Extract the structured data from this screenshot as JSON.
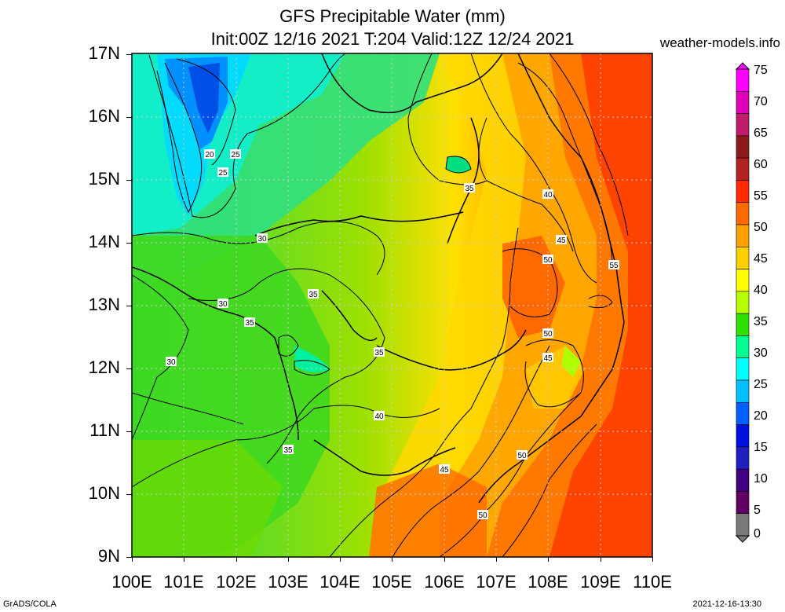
{
  "header": {
    "title_line1": "GFS Precipitable Water (mm)",
    "title_line2": "Init:00Z 12/16 2021 T:204 Valid:12Z 12/24 2021",
    "site": "weather-models.info"
  },
  "footer": {
    "left": "GrADS/COLA",
    "right": "2021-12-16-13:30"
  },
  "axes": {
    "lat_labels": [
      "17N",
      "16N",
      "15N",
      "14N",
      "13N",
      "12N",
      "11N",
      "10N",
      "9N"
    ],
    "lon_labels": [
      "100E",
      "101E",
      "102E",
      "103E",
      "104E",
      "105E",
      "106E",
      "107E",
      "108E",
      "109E",
      "110E"
    ]
  },
  "colorbar": {
    "labels": [
      "75",
      "70",
      "65",
      "60",
      "55",
      "50",
      "45",
      "40",
      "35",
      "30",
      "25",
      "20",
      "15",
      "10",
      "5",
      "0"
    ],
    "colors": [
      "#ff00ff",
      "#e000b8",
      "#c01c68",
      "#8b1a1a",
      "#b22222",
      "#ff2a00",
      "#ff6a00",
      "#ffa000",
      "#ffd000",
      "#ffff00",
      "#b8ff00",
      "#30e000",
      "#00ff90",
      "#00ffff",
      "#00c0ff",
      "#0060ff",
      "#0010e0",
      "#2020c0",
      "#400080",
      "#600060",
      "#7a7a7a"
    ]
  },
  "contour_labels": [
    {
      "text": "20"
    },
    {
      "text": "25"
    },
    {
      "text": "25"
    },
    {
      "text": "30"
    },
    {
      "text": "30"
    },
    {
      "text": "35"
    },
    {
      "text": "30"
    },
    {
      "text": "35"
    },
    {
      "text": "35"
    },
    {
      "text": "35"
    },
    {
      "text": "40"
    },
    {
      "text": "35"
    },
    {
      "text": "40"
    },
    {
      "text": "45"
    },
    {
      "text": "50"
    },
    {
      "text": "55"
    },
    {
      "text": "50"
    },
    {
      "text": "45"
    },
    {
      "text": "45"
    },
    {
      "text": "50"
    },
    {
      "text": "50"
    }
  ]
}
